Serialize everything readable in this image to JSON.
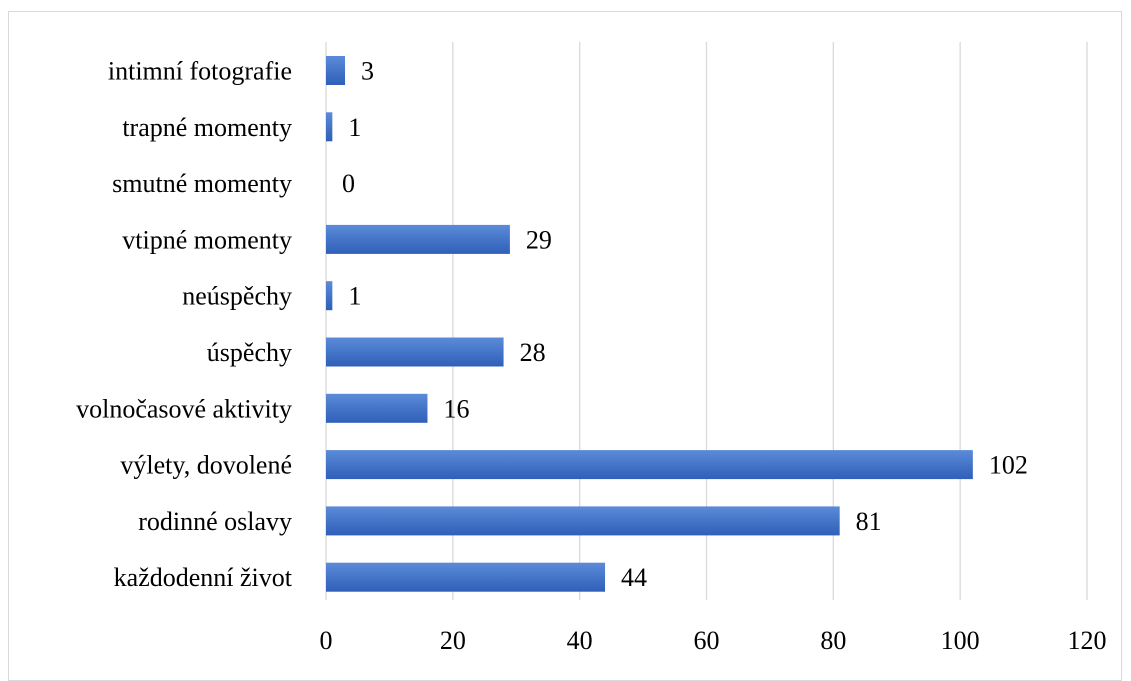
{
  "chart_data": {
    "type": "bar",
    "orientation": "horizontal",
    "categories": [
      "intimní fotografie",
      "trapné momenty",
      "smutné momenty",
      "vtipné momenty",
      "neúspěchy",
      "úspěchy",
      "volnočasové aktivity",
      "výlety, dovolené",
      "rodinné oslavy",
      "každodenní život"
    ],
    "values": [
      3,
      1,
      0,
      29,
      1,
      28,
      16,
      102,
      81,
      44
    ],
    "data_labels": [
      "3",
      "1",
      "0",
      "29",
      "1",
      "28",
      "16",
      "102",
      "81",
      "44"
    ],
    "xlim": [
      0,
      120
    ],
    "x_ticks": [
      0,
      20,
      40,
      60,
      80,
      100,
      120
    ],
    "x_tick_labels": [
      "0",
      "20",
      "40",
      "60",
      "80",
      "100",
      "120"
    ],
    "grid": "vertical",
    "legend": "none",
    "title": "",
    "xlabel": "",
    "ylabel": "",
    "bar_color_top": "#5b8bd8",
    "bar_color_bottom": "#2f5fb8",
    "grid_color": "#d9d9d9",
    "frame_color": "#d9d9d9"
  }
}
